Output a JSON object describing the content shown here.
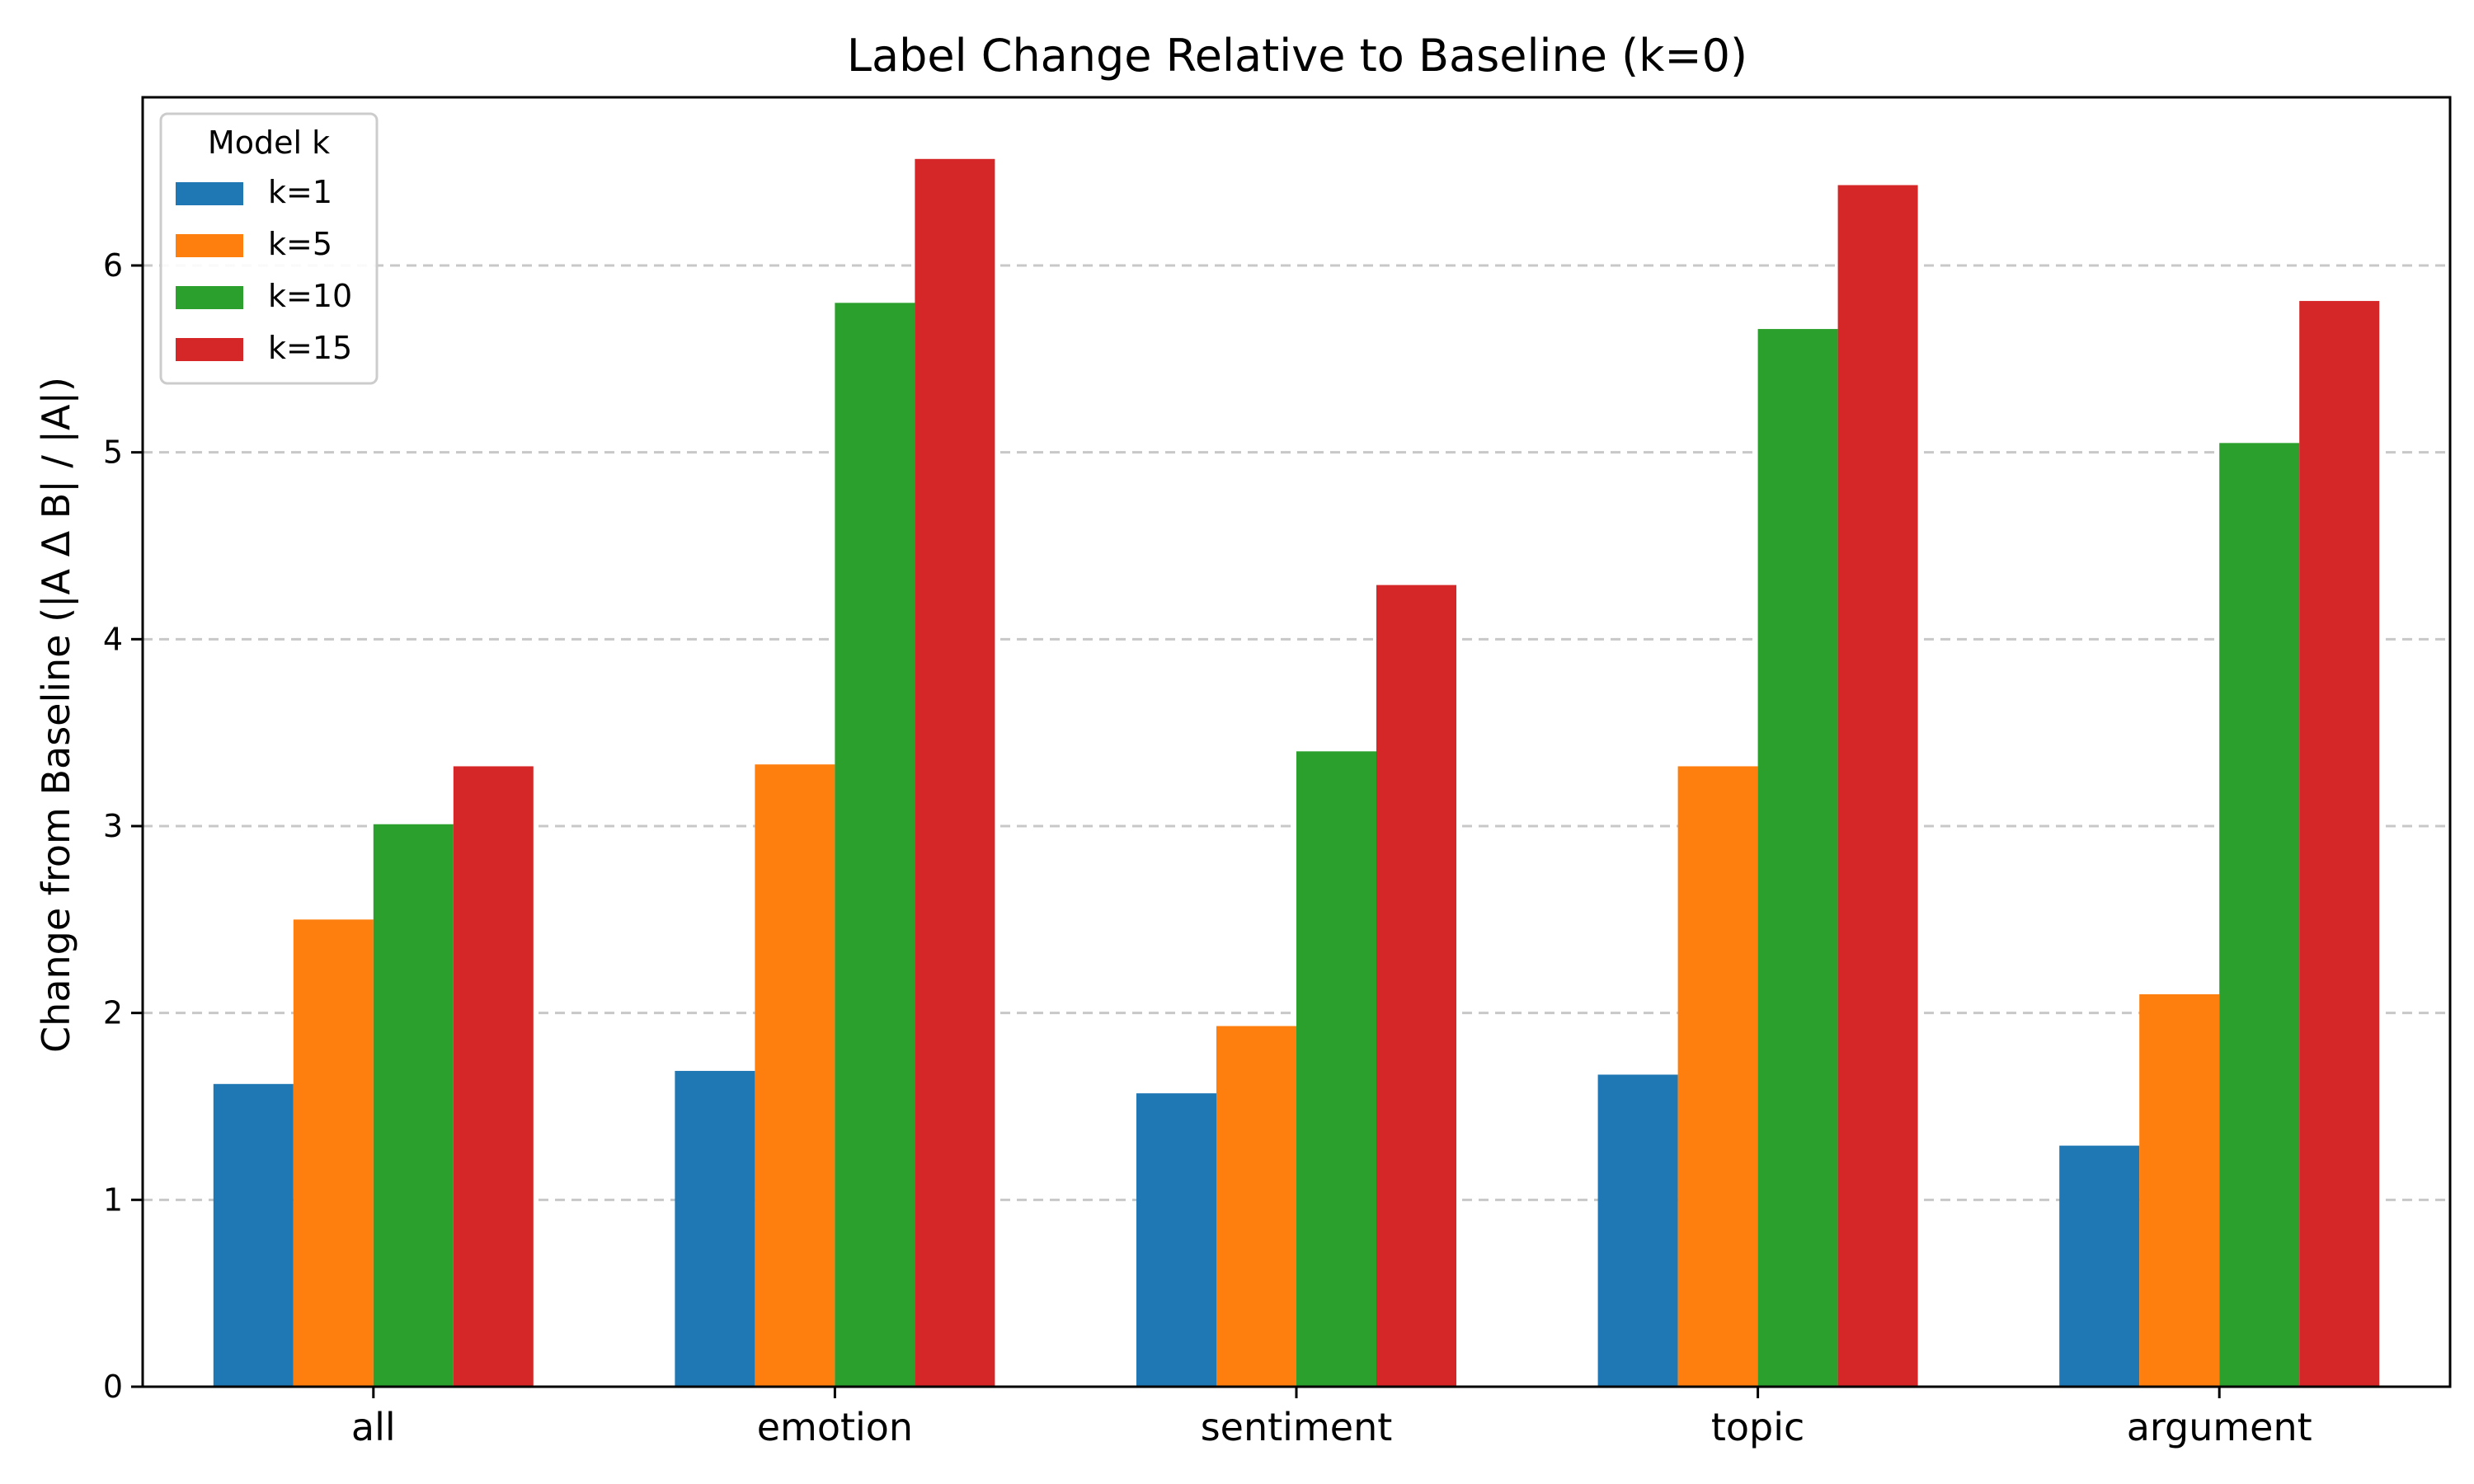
{
  "chart_data": {
    "type": "bar",
    "title": "Label Change Relative to Baseline (k=0)",
    "xlabel": "",
    "ylabel": "Change from Baseline (|A Δ B| / |A|)",
    "categories": [
      "all",
      "emotion",
      "sentiment",
      "topic",
      "argument"
    ],
    "series": [
      {
        "name": "k=1",
        "color": "#1f77b4",
        "values": [
          1.62,
          1.69,
          1.57,
          1.67,
          1.29
        ]
      },
      {
        "name": "k=5",
        "color": "#ff7f0e",
        "values": [
          2.5,
          3.33,
          1.93,
          3.32,
          2.1
        ]
      },
      {
        "name": "k=10",
        "color": "#2ca02c",
        "values": [
          3.01,
          5.8,
          3.4,
          5.66,
          5.05
        ]
      },
      {
        "name": "k=15",
        "color": "#d62728",
        "values": [
          3.32,
          6.57,
          4.29,
          6.43,
          5.81
        ]
      }
    ],
    "ylim": [
      0,
      6.9
    ],
    "y_ticks": [
      0,
      1,
      2,
      3,
      4,
      5,
      6
    ],
    "grid": true,
    "legend": {
      "title": "Model k",
      "placement": "top-left"
    }
  }
}
